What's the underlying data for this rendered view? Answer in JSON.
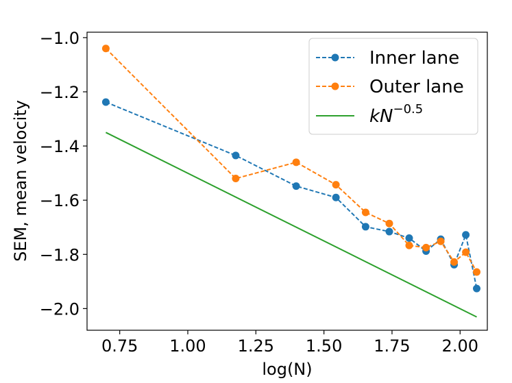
{
  "chart_data": {
    "type": "line",
    "title": "",
    "xlabel": "log(N)",
    "ylabel": "SEM, mean velocity",
    "xlim": [
      0.63,
      2.1
    ],
    "ylim": [
      -2.08,
      -0.98
    ],
    "grid": false,
    "legend_position": "top-right",
    "x_ticks": [
      0.75,
      1.0,
      1.25,
      1.5,
      1.75,
      2.0
    ],
    "x_tick_labels": [
      "0.75",
      "1.00",
      "1.25",
      "1.50",
      "1.75",
      "2.00"
    ],
    "y_ticks": [
      -1.0,
      -1.2,
      -1.4,
      -1.6,
      -1.8,
      -2.0
    ],
    "y_tick_labels": [
      "−1.0",
      "−1.2",
      "−1.4",
      "−1.6",
      "−1.8",
      "−2.0"
    ],
    "series": [
      {
        "name": "Inner lane",
        "color": "#1f77b4",
        "style": "dashed",
        "marker": "circle",
        "x": [
          0.699,
          1.176,
          1.398,
          1.544,
          1.653,
          1.74,
          1.813,
          1.875,
          1.929,
          1.978,
          2.021,
          2.061
        ],
        "y": [
          -1.238,
          -1.435,
          -1.548,
          -1.59,
          -1.698,
          -1.716,
          -1.74,
          -1.788,
          -1.744,
          -1.838,
          -1.728,
          -1.926
        ]
      },
      {
        "name": "Outer lane",
        "color": "#ff7f0e",
        "style": "dashed",
        "marker": "circle",
        "x": [
          0.699,
          1.176,
          1.398,
          1.544,
          1.653,
          1.74,
          1.813,
          1.875,
          1.929,
          1.978,
          2.021,
          2.061
        ],
        "y": [
          -1.04,
          -1.52,
          -1.46,
          -1.543,
          -1.645,
          -1.686,
          -1.767,
          -1.775,
          -1.752,
          -1.828,
          -1.792,
          -1.865
        ]
      },
      {
        "name": "kN^-0.5",
        "legend_base": "kN",
        "legend_exp": "−0.5",
        "color": "#2ca02c",
        "style": "solid",
        "marker": "none",
        "x": [
          0.699,
          2.061
        ],
        "y": [
          -1.35,
          -2.031
        ]
      }
    ]
  }
}
